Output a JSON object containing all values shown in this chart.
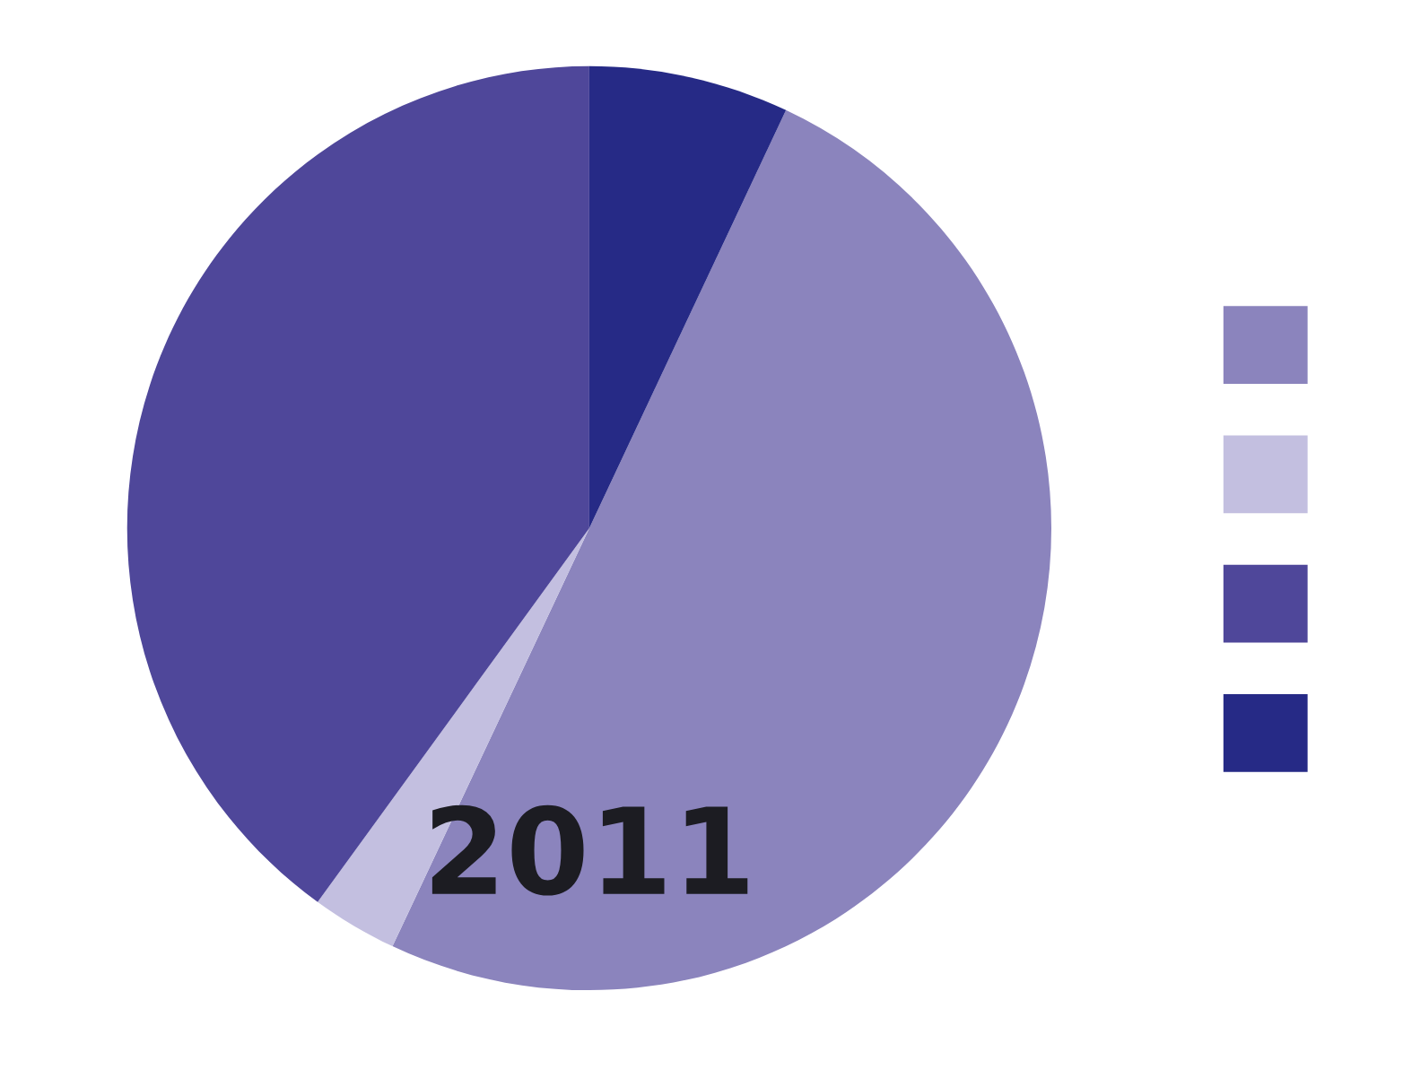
{
  "chart_data": {
    "type": "pie",
    "title": "2011",
    "categories": [
      null,
      null,
      null,
      null
    ],
    "values": [
      50,
      3,
      40,
      7
    ],
    "colors": [
      "#8b84bd",
      "#c3bfe0",
      "#4f479a",
      "#262a86"
    ]
  }
}
